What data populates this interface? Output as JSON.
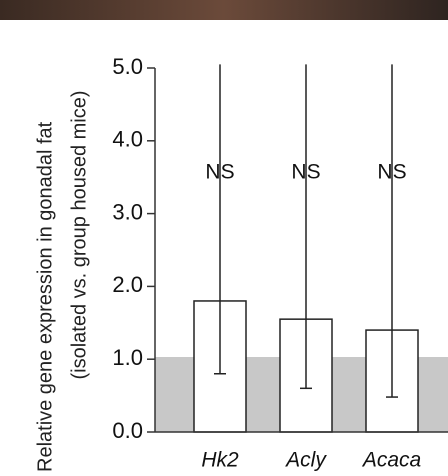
{
  "chart_data": {
    "type": "bar",
    "y_label_lines": [
      "Relative gene expression in gonadal fat",
      "(isolated vs. group housed mice)"
    ],
    "categories": [
      "Hk2",
      "Acly",
      "Acaca"
    ],
    "values": [
      1.8,
      1.55,
      1.4
    ],
    "error_low": [
      0.8,
      0.6,
      0.48
    ],
    "error_high": [
      5.05,
      5.05,
      5.05
    ],
    "annotations": [
      "NS",
      "NS",
      "NS"
    ],
    "reference_band": 1.03,
    "color": "#ffffff",
    "band_color": "#c8c8c8",
    "ylim": [
      0,
      5
    ],
    "yticks": [
      {
        "value": 0,
        "label": "0.0"
      },
      {
        "value": 1,
        "label": "1.0"
      },
      {
        "value": 2,
        "label": "2.0"
      },
      {
        "value": 3,
        "label": "3.0"
      },
      {
        "value": 4,
        "label": "4.0"
      },
      {
        "value": 5,
        "label": "5.0"
      }
    ]
  }
}
